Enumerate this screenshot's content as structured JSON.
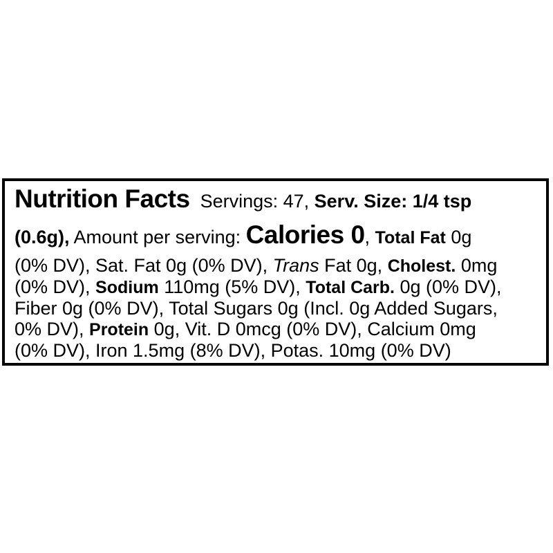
{
  "label": {
    "lines": [
      {
        "segments": [
          {
            "text": "Nutrition Facts"
          },
          {
            "text": "  Servings: 47, "
          },
          {
            "text": "Serv. Size: 1/4 tsp"
          }
        ]
      },
      {
        "segments": [
          {
            "text": "(0.6g),"
          },
          {
            "text": " Amount per serving: "
          },
          {
            "text": "Calories 0"
          },
          {
            "text": ", "
          },
          {
            "text": "Total Fat"
          },
          {
            "text": " 0g"
          }
        ]
      },
      {
        "segments": [
          {
            "text": "(0% DV), Sat. Fat 0g (0% DV), "
          },
          {
            "text": "Trans"
          },
          {
            "text": " Fat 0g, "
          },
          {
            "text": "Cholest."
          },
          {
            "text": " 0mg"
          }
        ]
      },
      {
        "segments": [
          {
            "text": "(0% DV), "
          },
          {
            "text": "Sodium"
          },
          {
            "text": " 110mg (5% DV), "
          },
          {
            "text": "Total Carb."
          },
          {
            "text": " 0g (0% DV),"
          }
        ]
      },
      {
        "segments": [
          {
            "text": "Fiber 0g (0% DV), Total Sugars 0g (Incl. 0g Added Sugars,"
          }
        ]
      },
      {
        "segments": [
          {
            "text": "0% DV), "
          },
          {
            "text": "Protein"
          },
          {
            "text": " 0g, Vit. D 0mcg (0% DV), Calcium 0mg"
          }
        ]
      },
      {
        "segments": [
          {
            "text": "(0% DV), Iron 1.5mg (8% DV), Potas. 10mg (0% DV)"
          }
        ]
      }
    ]
  },
  "nutrition_facts": {
    "title": "Nutrition Facts",
    "servings": "47",
    "serving_size": "1/4 tsp (0.6g)",
    "calories": "0",
    "total_fat": "0g (0% DV)",
    "saturated_fat": "0g (0% DV)",
    "trans_fat": "0g",
    "cholesterol": "0mg (0% DV)",
    "sodium": "110mg (5% DV)",
    "total_carbohydrate": "0g (0% DV)",
    "fiber": "0g (0% DV)",
    "total_sugars": "0g",
    "added_sugars": "0g (0% DV)",
    "protein": "0g",
    "vitamin_d": "0mcg (0% DV)",
    "calcium": "0mg (0% DV)",
    "iron": "1.5mg (8% DV)",
    "potassium": "10mg (0% DV)"
  },
  "colors": {
    "text": "#000000",
    "border": "#000000",
    "background": "#ffffff"
  }
}
